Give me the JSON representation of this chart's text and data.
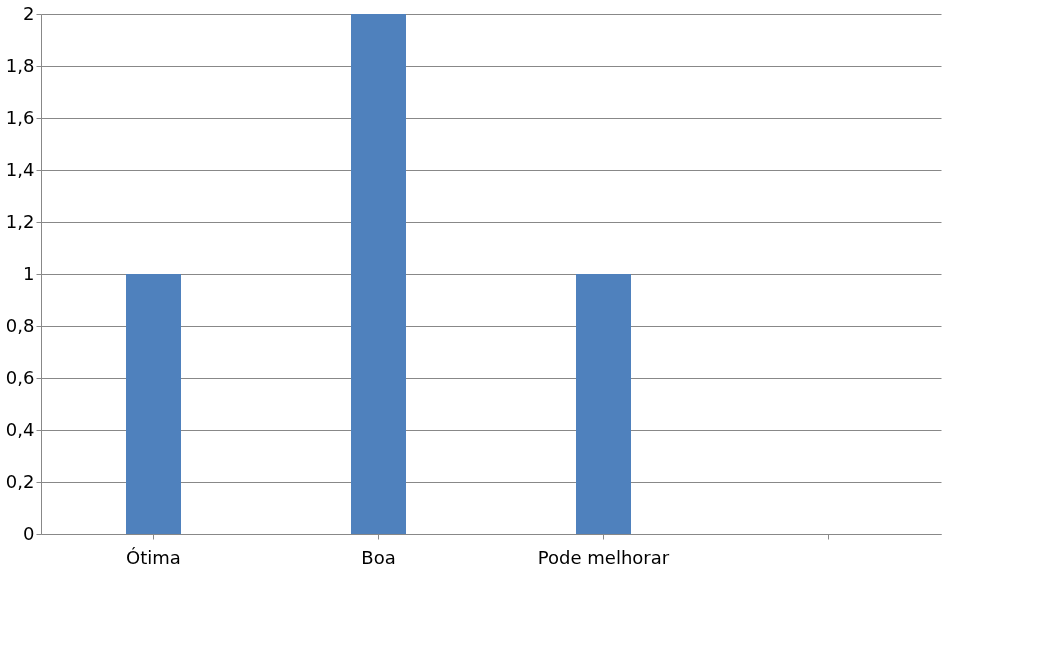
{
  "chart_data": {
    "type": "bar",
    "categories": [
      "Ótima",
      "Boa",
      "Pode melhorar",
      null
    ],
    "values": [
      1,
      2,
      1,
      null
    ],
    "color": "#4f81bd",
    "ylim": [
      0,
      2
    ],
    "yticks": [
      0,
      {
        "value": 0.2,
        "label": "0,2"
      },
      {
        "value": 0.4,
        "label": "0,4"
      },
      {
        "value": 0.6,
        "label": "0,6"
      },
      {
        "value": 0.8,
        "label": "0,8"
      },
      1,
      {
        "value": 1.2,
        "label": "1,2"
      },
      {
        "value": 1.4,
        "label": "1,4"
      },
      {
        "value": 1.6,
        "label": "1,6"
      },
      {
        "value": 1.8,
        "label": "1,8"
      },
      2
    ],
    "grid": "y"
  }
}
